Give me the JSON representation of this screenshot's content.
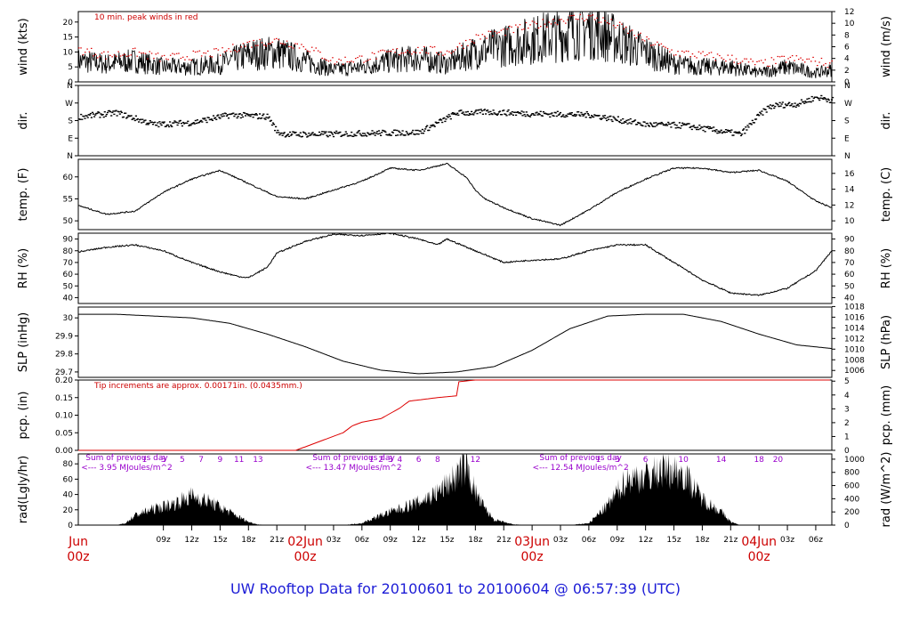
{
  "figure": {
    "title": "UW Rooftop Data for 20100601  to  20100604 @ 06:57:39  (UTC)",
    "colors": {
      "title": "#1c1cd6",
      "series": "#000000",
      "peak": "#dd0000",
      "note": "#cc0000",
      "purple": "#9900cc",
      "day": "#cc0000"
    }
  },
  "chart_data": [
    {
      "type": "line",
      "id": "wind",
      "ylabel": "wind (kts)",
      "ylabel_right": "wind (m/s)",
      "ylim": [
        0,
        23.5
      ],
      "yticks": [
        0,
        5,
        10,
        15,
        20
      ],
      "ylim_right": [
        0,
        12
      ],
      "yticks_right": [
        0,
        2,
        4,
        6,
        8,
        10,
        12
      ],
      "annotation": "10 min. peak winds in red",
      "series": [
        {
          "name": "wind speed",
          "x": [
            0,
            3,
            6,
            9,
            12,
            15,
            18,
            21,
            24,
            27,
            30,
            33,
            36,
            39,
            42,
            45,
            48,
            51,
            54,
            57,
            60,
            63,
            66,
            69,
            72,
            75,
            78,
            79.7
          ],
          "values": [
            7,
            6,
            7,
            5,
            5,
            6,
            9,
            10,
            7,
            4,
            5,
            7,
            8,
            6,
            10,
            12,
            14,
            16,
            18,
            14,
            10,
            6,
            5,
            5,
            3,
            5,
            3,
            4
          ]
        },
        {
          "name": "10 min peak",
          "x": [
            0,
            3,
            6,
            9,
            12,
            15,
            18,
            21,
            24,
            27,
            30,
            33,
            36,
            39,
            42,
            45,
            48,
            51,
            54,
            57,
            60,
            63,
            66,
            69,
            72,
            75,
            78,
            79.7
          ],
          "values": [
            11,
            9,
            10,
            8,
            9,
            10,
            13,
            14,
            12,
            7,
            8,
            10,
            11,
            10,
            15,
            17,
            19,
            21,
            22,
            19,
            14,
            10,
            9,
            8,
            6,
            8,
            7,
            6
          ]
        }
      ]
    },
    {
      "type": "scatter",
      "id": "dir",
      "ylabel": "dir.",
      "ylabel_right": "dir.",
      "ylim": [
        0,
        360
      ],
      "yticklabels": [
        "N",
        "E",
        "S",
        "W",
        "N"
      ],
      "yticklabels_right": [
        "N",
        "E",
        "S",
        "W",
        "N"
      ],
      "ytick_values": [
        0,
        90,
        180,
        270,
        360
      ],
      "series": [
        {
          "name": "wind direction",
          "x": [
            0,
            4,
            8,
            12,
            16,
            20,
            21,
            22,
            26,
            30,
            36,
            40,
            42,
            43,
            48,
            54,
            60,
            64,
            66,
            70,
            72,
            73,
            74,
            76,
            78,
            79.7
          ],
          "values": [
            200,
            220,
            160,
            170,
            210,
            200,
            120,
            110,
            110,
            115,
            120,
            220,
            220,
            225,
            215,
            210,
            160,
            155,
            140,
            110,
            210,
            250,
            260,
            265,
            300,
            285
          ]
        }
      ]
    },
    {
      "type": "line",
      "id": "temp",
      "ylabel": "temp. (F)",
      "ylabel_right": "temp. (C)",
      "ylim": [
        48,
        64
      ],
      "yticks": [
        50,
        55,
        60
      ],
      "ylim_right": [
        8.89,
        17.78
      ],
      "yticks_right": [
        10,
        12,
        14,
        16
      ],
      "series": [
        {
          "name": "temperature",
          "x": [
            0,
            3,
            6,
            9,
            12,
            15,
            18,
            21,
            24,
            27,
            30,
            33,
            36,
            39,
            41,
            42,
            43,
            45,
            48,
            51,
            54,
            57,
            60,
            63,
            66,
            69,
            72,
            75,
            78,
            79.7
          ],
          "values": [
            53.5,
            51.5,
            52.2,
            56.5,
            59.5,
            61.5,
            58.5,
            55.5,
            55,
            57,
            59,
            62,
            61.5,
            63,
            60,
            57,
            55,
            53,
            50.5,
            49,
            52.5,
            56.5,
            59.5,
            62,
            62,
            61,
            61.5,
            59,
            54.5,
            53
          ]
        }
      ]
    },
    {
      "type": "line",
      "id": "rh",
      "ylabel": "RH (%)",
      "ylabel_right": "RH (%)",
      "ylim": [
        35,
        95
      ],
      "yticks": [
        40,
        50,
        60,
        70,
        80,
        90
      ],
      "yticks_right": [
        40,
        50,
        60,
        70,
        80,
        90
      ],
      "series": [
        {
          "name": "relative humidity",
          "x": [
            0,
            3,
            6,
            9,
            12,
            15,
            17,
            18,
            20,
            21,
            24,
            27,
            30,
            33,
            36,
            38,
            39,
            42,
            45,
            48,
            51,
            54,
            57,
            60,
            63,
            66,
            69,
            72,
            75,
            78,
            79.7
          ],
          "values": [
            79,
            83,
            85,
            80,
            70,
            62,
            58,
            57,
            66,
            78,
            88,
            94,
            93,
            95,
            90,
            85,
            90,
            80,
            70,
            72,
            73,
            80,
            85,
            85,
            70,
            55,
            44,
            42,
            48,
            63,
            80
          ]
        }
      ]
    },
    {
      "type": "line",
      "id": "slp",
      "ylabel": "SLP (inHg)",
      "ylabel_right": "SLP (hPa)",
      "ylim": [
        29.67,
        30.06
      ],
      "yticks": [
        29.7,
        29.8,
        29.9,
        30.0
      ],
      "ylim_right": [
        1004.7,
        1017.9
      ],
      "yticks_right": [
        1006,
        1008,
        1010,
        1012,
        1014,
        1016,
        1018
      ],
      "series": [
        {
          "name": "sea level pressure",
          "x": [
            0,
            4,
            8,
            12,
            16,
            20,
            24,
            28,
            32,
            36,
            40,
            44,
            48,
            52,
            56,
            60,
            64,
            68,
            72,
            76,
            79.7
          ],
          "values": [
            30.02,
            30.02,
            30.01,
            30.0,
            29.97,
            29.91,
            29.84,
            29.76,
            29.71,
            29.69,
            29.7,
            29.73,
            29.82,
            29.94,
            30.01,
            30.02,
            30.02,
            29.98,
            29.91,
            29.85,
            29.83
          ]
        }
      ]
    },
    {
      "type": "line",
      "id": "pcp",
      "ylabel": "pcp. (in)",
      "ylabel_right": "pcp. (mm)",
      "ylim": [
        0,
        0.2
      ],
      "yticks": [
        0.0,
        0.05,
        0.1,
        0.15,
        0.2
      ],
      "yticklabels": [
        "0.00",
        "0.05",
        "0.10",
        "0.15",
        "0.20"
      ],
      "ylim_right": [
        0,
        5.08
      ],
      "yticks_right": [
        0,
        1,
        2,
        3,
        4,
        5
      ],
      "annotation": "Tip increments are approx. 0.00171in. (0.0435mm.)",
      "series": [
        {
          "name": "accumulated precipitation",
          "x": [
            0,
            23,
            24,
            26,
            28,
            29,
            30,
            32,
            34,
            35,
            38,
            40,
            40.2,
            42,
            79.7
          ],
          "values": [
            0,
            0,
            0.01,
            0.03,
            0.05,
            0.07,
            0.08,
            0.09,
            0.12,
            0.14,
            0.15,
            0.155,
            0.195,
            0.2,
            0.2
          ]
        }
      ]
    },
    {
      "type": "area",
      "id": "rad",
      "ylabel": "rad(Lgly/hr)",
      "ylabel_right": "rad (W/m^2)",
      "ylim": [
        0,
        93
      ],
      "yticks": [
        0,
        20,
        40,
        60,
        80
      ],
      "ylim_right": [
        0,
        1080
      ],
      "yticks_right": [
        0,
        200,
        400,
        600,
        800,
        1000
      ],
      "series": [
        {
          "name": "solar radiation",
          "x": [
            0,
            4,
            5,
            6,
            8,
            10,
            12,
            14,
            16,
            18,
            19,
            20,
            28,
            30,
            32,
            34,
            36,
            38,
            40,
            41,
            42,
            43,
            44,
            46,
            48,
            52,
            54,
            56,
            58,
            60,
            62,
            64,
            66,
            68,
            69,
            70,
            79.7
          ],
          "values": [
            0,
            0,
            3,
            15,
            25,
            32,
            45,
            35,
            20,
            5,
            1,
            0,
            0,
            3,
            15,
            25,
            35,
            50,
            75,
            93,
            50,
            25,
            8,
            1,
            0,
            0,
            3,
            30,
            70,
            75,
            85,
            80,
            40,
            20,
            5,
            0,
            0
          ]
        }
      ],
      "daily_notes": [
        {
          "text": "Sum of previous day",
          "text2": "<--- 3.95 MJoules/m^2",
          "x": 0.8
        },
        {
          "text": "Sum of previous day",
          "text2": "<--- 13.47 MJoules/m^2",
          "x": 24.8
        },
        {
          "text": "Sum of previous day",
          "text2": "<--- 12.54 MJoules/m^2",
          "x": 48.8
        }
      ],
      "hour_labels": [
        {
          "day": 0,
          "labels": [
            "1",
            "3",
            "5",
            "7",
            "9",
            "11",
            "13"
          ],
          "hours": [
            1,
            3,
            5,
            7,
            9,
            11,
            13
          ]
        },
        {
          "day": 1,
          "labels": [
            "1",
            "2",
            "3",
            "4",
            "6",
            "8",
            "12"
          ],
          "hours": [
            1,
            2,
            3,
            4,
            6,
            8,
            12
          ]
        },
        {
          "day": 2,
          "labels": [
            "1",
            "3",
            "6",
            "10",
            "14",
            "18",
            "20"
          ],
          "hours": [
            1,
            3,
            6,
            10,
            14,
            18,
            20
          ]
        }
      ]
    }
  ],
  "x_axis": {
    "hours_from": "20100601 00z",
    "xlim": [
      0,
      79.7
    ],
    "tick_hours": [
      9,
      12,
      15,
      18,
      21,
      24,
      27,
      30,
      33,
      36,
      39,
      42,
      45,
      48,
      51,
      54,
      57,
      60,
      63,
      66,
      69,
      72,
      75,
      78
    ],
    "tick_labels": [
      "09z",
      "12z",
      "15z",
      "18z",
      "21z",
      "",
      "03z",
      "06z",
      "09z",
      "12z",
      "15z",
      "18z",
      "21z",
      "",
      "03z",
      "06z",
      "09z",
      "12z",
      "15z",
      "18z",
      "21z",
      "",
      "03z",
      "06z"
    ],
    "day_labels": [
      {
        "line1": "Jun",
        "line2": "00z",
        "hour": 0
      },
      {
        "line1": "02Jun",
        "line2": "00z",
        "hour": 24
      },
      {
        "line1": "03Jun",
        "line2": "00z",
        "hour": 48
      },
      {
        "line1": "04Jun",
        "line2": "00z",
        "hour": 72
      }
    ]
  }
}
